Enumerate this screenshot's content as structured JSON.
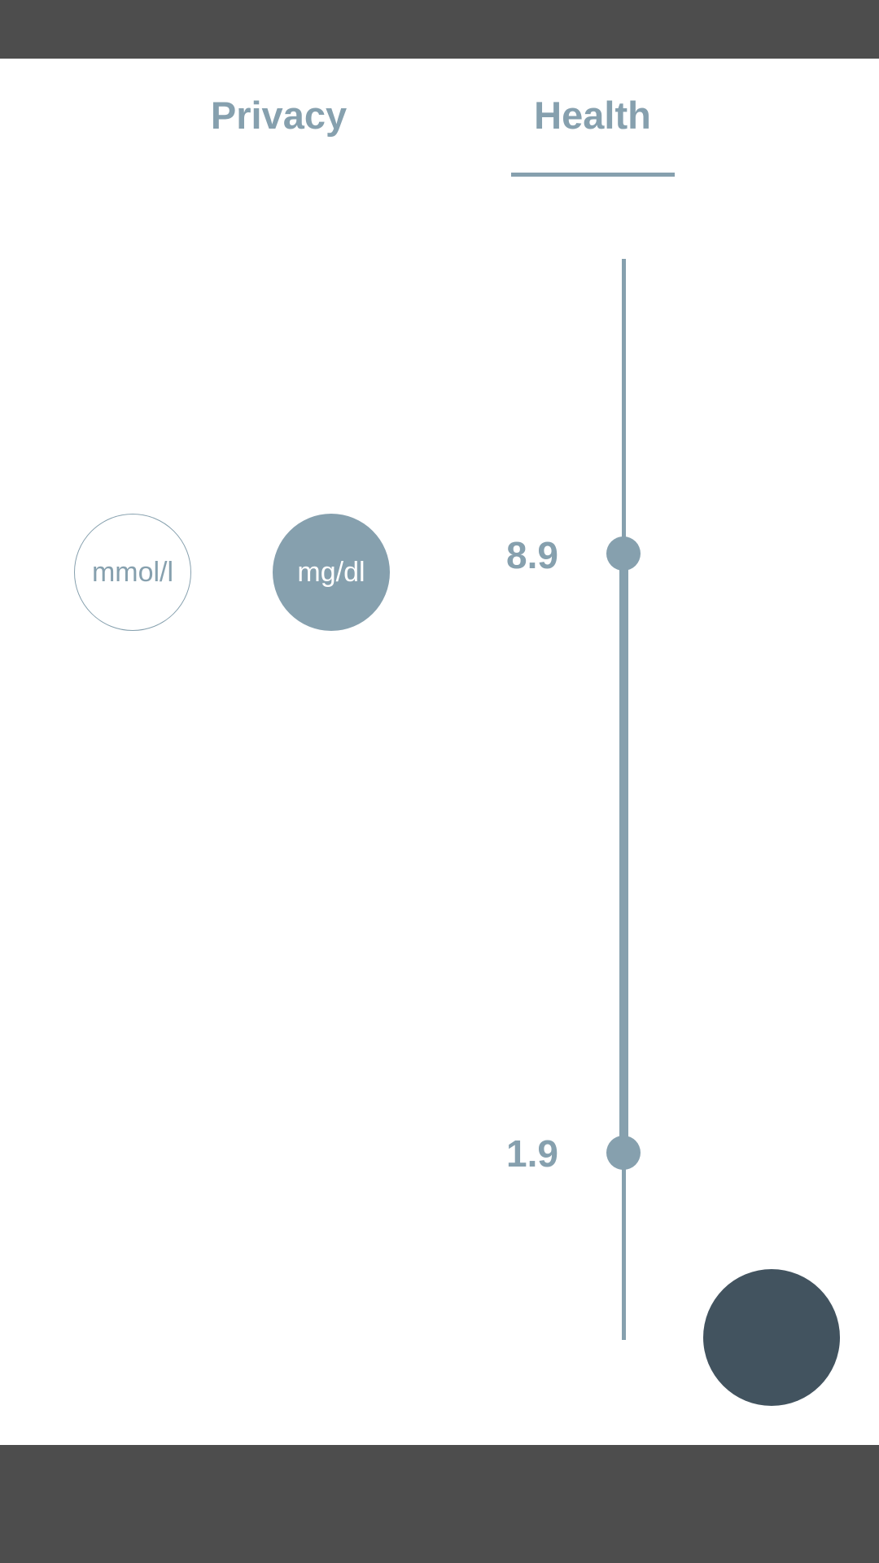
{
  "tabs": [
    {
      "label": "Privacy",
      "selected": false
    },
    {
      "label": "Health",
      "selected": true
    }
  ],
  "units": {
    "options": [
      "mmol/l",
      "mg/dl"
    ],
    "selected": "mg/dl"
  },
  "range_slider": {
    "upper_value": "8.9",
    "lower_value": "1.9"
  },
  "colors": {
    "accent": "#86a0ae",
    "fab": "#42535f",
    "system_bars": "#4d4d4d",
    "background": "#ffffff"
  }
}
